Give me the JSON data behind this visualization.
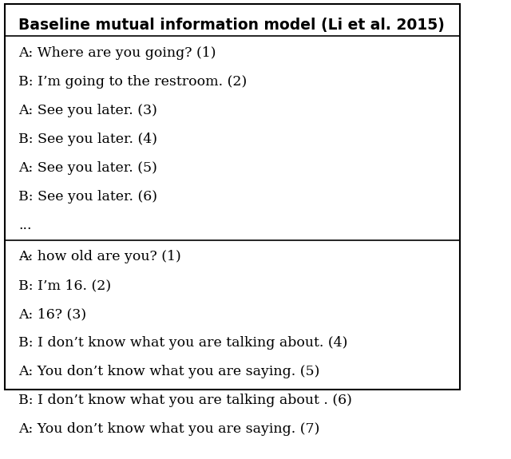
{
  "title": "Baseline mutual information model (Li et al. 2015)",
  "section1_lines": [
    "A: Where are you going? (1)",
    "B: I’m going to the restroom. (2)",
    "A: See you later. (3)",
    "B: See you later. (4)",
    "A: See you later. (5)",
    "B: See you later. (6)",
    "...",
    "..."
  ],
  "section2_lines": [
    "A: how old are you? (1)",
    "B: I’m 16. (2)",
    "A: 16? (3)",
    "B: I don’t know what you are talking about. (4)",
    "A: You don’t know what you are saying. (5)",
    "B: I don’t know what you are talking about . (6)",
    "A: You don’t know what you are saying. (7)",
    "..."
  ],
  "bg_color": "#ffffff",
  "text_color": "#000000",
  "border_color": "#000000",
  "title_fontsize": 13.5,
  "body_fontsize": 12.5
}
